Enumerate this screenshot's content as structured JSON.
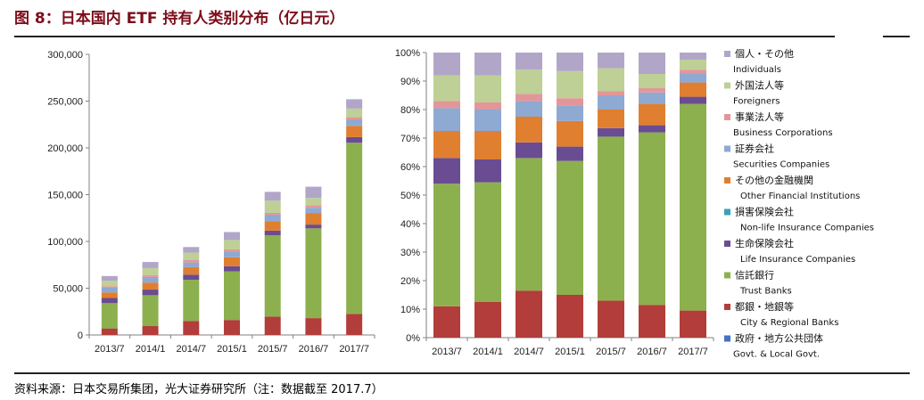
{
  "figure": {
    "title": "图 8：日本国内 ETF 持有人类别分布（亿日元）",
    "source": "资料来源：日本交易所集团，光大证券研究所（注：数据截至 2017.7）"
  },
  "colors": {
    "Govt. & Local Govt.": "#4472c4",
    "City & Regional Banks": "#b33d3a",
    "Trust Banks": "#8db04e",
    "Life Insurance Companies": "#6a4c93",
    "Non-life Insurance Companies": "#3aa0b8",
    "Other Financial Institutions": "#e07f2f",
    "Securities Companies": "#8ea9d2",
    "Business Corporations": "#e3969a",
    "Foreigners": "#bed095",
    "Individuals": "#b1a6c8"
  },
  "legend": [
    {
      "jp": "個人・その他",
      "en": "Individuals",
      "key": "Individuals"
    },
    {
      "jp": "外国法人等",
      "en": "Foreigners",
      "key": "Foreigners"
    },
    {
      "jp": "事業法人等",
      "en": "Business Corporations",
      "key": "Business Corporations"
    },
    {
      "jp": "証券会社",
      "en": "Securities Companies",
      "key": "Securities Companies"
    },
    {
      "jp": "その他の金融機関",
      "en": "Other Financial Institutions",
      "key": "Other Financial Institutions"
    },
    {
      "jp": "損害保険会社",
      "en": "Non-life Insurance Companies",
      "key": "Non-life Insurance Companies"
    },
    {
      "jp": "生命保険会社",
      "en": "Life Insurance Companies",
      "key": "Life Insurance Companies"
    },
    {
      "jp": "信託銀行",
      "en": "Trust Banks",
      "key": "Trust Banks"
    },
    {
      "jp": "都銀・地銀等",
      "en": "City & Regional Banks",
      "key": "City & Regional Banks"
    },
    {
      "jp": "政府・地方公共団体",
      "en": "Govt. & Local Govt.",
      "key": "Govt. & Local Govt."
    }
  ],
  "chart_data": [
    {
      "type": "bar",
      "stacked": true,
      "categories": [
        "2013/7",
        "2014/1",
        "2014/7",
        "2015/1",
        "2015/7",
        "2016/7",
        "2017/7"
      ],
      "ylim": [
        0,
        300000
      ],
      "yticks": [
        "0",
        "50,000",
        "100,000",
        "150,000",
        "200,000",
        "250,000",
        "300,000"
      ],
      "grid": false,
      "series": [
        {
          "name": "Govt. & Local Govt.",
          "values": [
            0,
            0,
            0,
            0,
            0,
            0,
            0
          ]
        },
        {
          "name": "City & Regional Banks",
          "values": [
            7000,
            9500,
            15000,
            16000,
            19500,
            18000,
            22500
          ]
        },
        {
          "name": "Trust Banks",
          "values": [
            27000,
            33000,
            44000,
            52000,
            87000,
            96000,
            183000
          ]
        },
        {
          "name": "Life Insurance Companies",
          "values": [
            5500,
            6000,
            5500,
            5500,
            5000,
            4000,
            6000
          ]
        },
        {
          "name": "Non-life Insurance Companies",
          "values": [
            0,
            0,
            0,
            0,
            0,
            0,
            0
          ]
        },
        {
          "name": "Other Financial Institutions",
          "values": [
            6000,
            7500,
            8000,
            9500,
            10000,
            12000,
            12000
          ]
        },
        {
          "name": "Securities Companies",
          "values": [
            5000,
            6000,
            5000,
            6000,
            7000,
            6000,
            6500
          ]
        },
        {
          "name": "Business Corporations",
          "values": [
            1500,
            2000,
            2500,
            2500,
            2000,
            2500,
            3000
          ]
        },
        {
          "name": "Foreigners",
          "values": [
            6000,
            7500,
            8000,
            10000,
            13000,
            8000,
            9000
          ]
        },
        {
          "name": "Individuals",
          "values": [
            5000,
            6500,
            6000,
            8500,
            9500,
            12000,
            10000
          ]
        }
      ]
    },
    {
      "type": "bar",
      "stacked": true,
      "percent": true,
      "categories": [
        "2013/7",
        "2014/1",
        "2014/7",
        "2015/1",
        "2015/7",
        "2016/7",
        "2017/7"
      ],
      "ylim": [
        0,
        100
      ],
      "yticks": [
        "0%",
        "10%",
        "20%",
        "30%",
        "40%",
        "50%",
        "60%",
        "70%",
        "80%",
        "90%",
        "100%"
      ],
      "grid": false,
      "series": [
        {
          "name": "Govt. & Local Govt.",
          "values": [
            0,
            0,
            0,
            0,
            0,
            0,
            0
          ]
        },
        {
          "name": "City & Regional Banks",
          "values": [
            11,
            12.5,
            16.5,
            15,
            13,
            11.5,
            9.5
          ]
        },
        {
          "name": "Trust Banks",
          "values": [
            43,
            42,
            46.5,
            47,
            57.5,
            60.5,
            72.5
          ]
        },
        {
          "name": "Life Insurance Companies",
          "values": [
            9,
            8,
            5.5,
            5,
            3,
            2.5,
            2.5
          ]
        },
        {
          "name": "Non-life Insurance Companies",
          "values": [
            0,
            0,
            0,
            0,
            0,
            0,
            0
          ]
        },
        {
          "name": "Other Financial Institutions",
          "values": [
            9.5,
            10,
            9,
            9,
            6.5,
            7.5,
            5
          ]
        },
        {
          "name": "Securities Companies",
          "values": [
            8,
            7.5,
            5.5,
            5.5,
            5,
            4,
            3
          ]
        },
        {
          "name": "Business Corporations",
          "values": [
            2.5,
            2.5,
            2.5,
            2.5,
            1.5,
            1.5,
            1.5
          ]
        },
        {
          "name": "Foreigners",
          "values": [
            9,
            9.5,
            8.5,
            9.5,
            8,
            5,
            3.5
          ]
        },
        {
          "name": "Individuals",
          "values": [
            8,
            8,
            6,
            6.5,
            5.5,
            7.5,
            2.5
          ]
        }
      ]
    }
  ]
}
